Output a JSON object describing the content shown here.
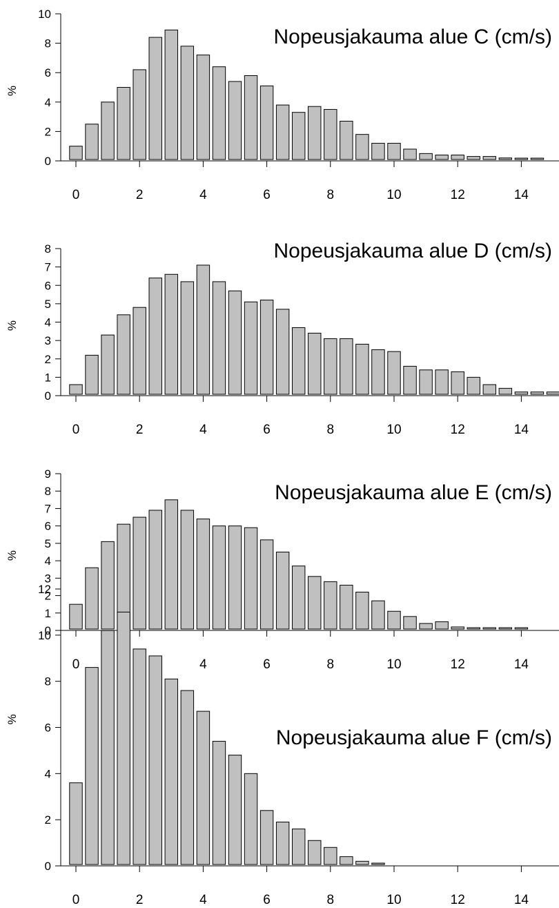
{
  "chart_data": [
    {
      "type": "bar",
      "title": "Nopeusjakauma alue C (cm/s)",
      "ylabel": "%",
      "xlabel": "",
      "ylim": [
        0,
        10
      ],
      "yticks": [
        0,
        2,
        4,
        6,
        8,
        10
      ],
      "xlim": [
        -0.25,
        15
      ],
      "xticks": [
        0,
        2,
        4,
        6,
        8,
        10,
        12,
        14
      ],
      "bin_width": 0.5,
      "x": [
        0,
        0.5,
        1,
        1.5,
        2,
        2.5,
        3,
        3.5,
        4,
        4.5,
        5,
        5.5,
        6,
        6.5,
        7,
        7.5,
        8,
        8.5,
        9,
        9.5,
        10,
        10.5,
        11,
        11.5,
        12,
        12.5,
        13,
        13.5,
        14,
        14.5
      ],
      "values": [
        1.0,
        2.5,
        4.0,
        5.0,
        6.2,
        8.4,
        8.9,
        7.8,
        7.2,
        6.4,
        5.4,
        5.8,
        5.1,
        3.8,
        3.3,
        3.7,
        3.5,
        2.7,
        1.8,
        1.2,
        1.2,
        0.8,
        0.5,
        0.4,
        0.4,
        0.3,
        0.3,
        0.2,
        0.1,
        0.1
      ]
    },
    {
      "type": "bar",
      "title": "Nopeusjakauma alue D (cm/s)",
      "ylabel": "%",
      "xlabel": "",
      "ylim": [
        0,
        8
      ],
      "yticks": [
        0,
        1,
        2,
        3,
        4,
        5,
        6,
        7,
        8
      ],
      "xlim": [
        -0.25,
        15
      ],
      "xticks": [
        0,
        2,
        4,
        6,
        8,
        10,
        12,
        14
      ],
      "bin_width": 0.5,
      "x": [
        0,
        0.5,
        1,
        1.5,
        2,
        2.5,
        3,
        3.5,
        4,
        4.5,
        5,
        5.5,
        6,
        6.5,
        7,
        7.5,
        8,
        8.5,
        9,
        9.5,
        10,
        10.5,
        11,
        11.5,
        12,
        12.5,
        13,
        13.5,
        14,
        14.5,
        15
      ],
      "values": [
        0.6,
        2.2,
        3.3,
        4.4,
        4.8,
        6.4,
        6.6,
        6.2,
        7.1,
        6.2,
        5.7,
        5.1,
        5.2,
        4.7,
        3.7,
        3.4,
        3.1,
        3.1,
        2.8,
        2.5,
        2.4,
        1.6,
        1.4,
        1.4,
        1.3,
        1.0,
        0.6,
        0.4,
        0.2,
        0.2,
        0.2
      ]
    },
    {
      "type": "bar",
      "title": "Nopeusjakauma alue E (cm/s)",
      "ylabel": "%",
      "xlabel": "",
      "ylim": [
        0,
        9
      ],
      "yticks": [
        0,
        1,
        2,
        3,
        4,
        5,
        6,
        7,
        8,
        9
      ],
      "xlim": [
        -0.25,
        15
      ],
      "xticks": [
        0,
        2,
        4,
        6,
        8,
        10,
        12,
        14
      ],
      "bin_width": 0.5,
      "x": [
        0,
        0.5,
        1,
        1.5,
        2,
        2.5,
        3,
        3.5,
        4,
        4.5,
        5,
        5.5,
        6,
        6.5,
        7,
        7.5,
        8,
        8.5,
        9,
        9.5,
        10,
        10.5,
        11,
        11.5,
        12,
        12.5,
        13,
        13.5,
        14
      ],
      "values": [
        1.5,
        3.6,
        5.1,
        6.1,
        6.5,
        6.9,
        7.5,
        6.9,
        6.4,
        6.0,
        6.0,
        5.9,
        5.2,
        4.5,
        3.7,
        3.1,
        2.8,
        2.6,
        2.2,
        1.7,
        1.1,
        0.8,
        0.4,
        0.5,
        0.2,
        0.05,
        0.1,
        0.05,
        0.05
      ]
    },
    {
      "type": "bar",
      "title": "Nopeusjakauma alue F (cm/s)",
      "ylabel": "%",
      "xlabel": "",
      "ylim": [
        0,
        13
      ],
      "yticks": [
        0,
        2,
        4,
        6,
        8,
        10,
        12
      ],
      "xlim": [
        -0.25,
        15
      ],
      "xticks": [
        0,
        2,
        4,
        6,
        8,
        10,
        12,
        14
      ],
      "bin_width": 0.5,
      "x": [
        0,
        0.5,
        1,
        1.5,
        2,
        2.5,
        3,
        3.5,
        4,
        4.5,
        5,
        5.5,
        6,
        6.5,
        7,
        7.5,
        8,
        8.5,
        9,
        9.5
      ],
      "values": [
        3.6,
        8.6,
        10.2,
        11.0,
        9.4,
        9.1,
        8.1,
        7.6,
        6.7,
        5.4,
        4.8,
        4.0,
        2.4,
        1.9,
        1.6,
        1.1,
        0.8,
        0.4,
        0.2,
        0.05
      ]
    }
  ]
}
